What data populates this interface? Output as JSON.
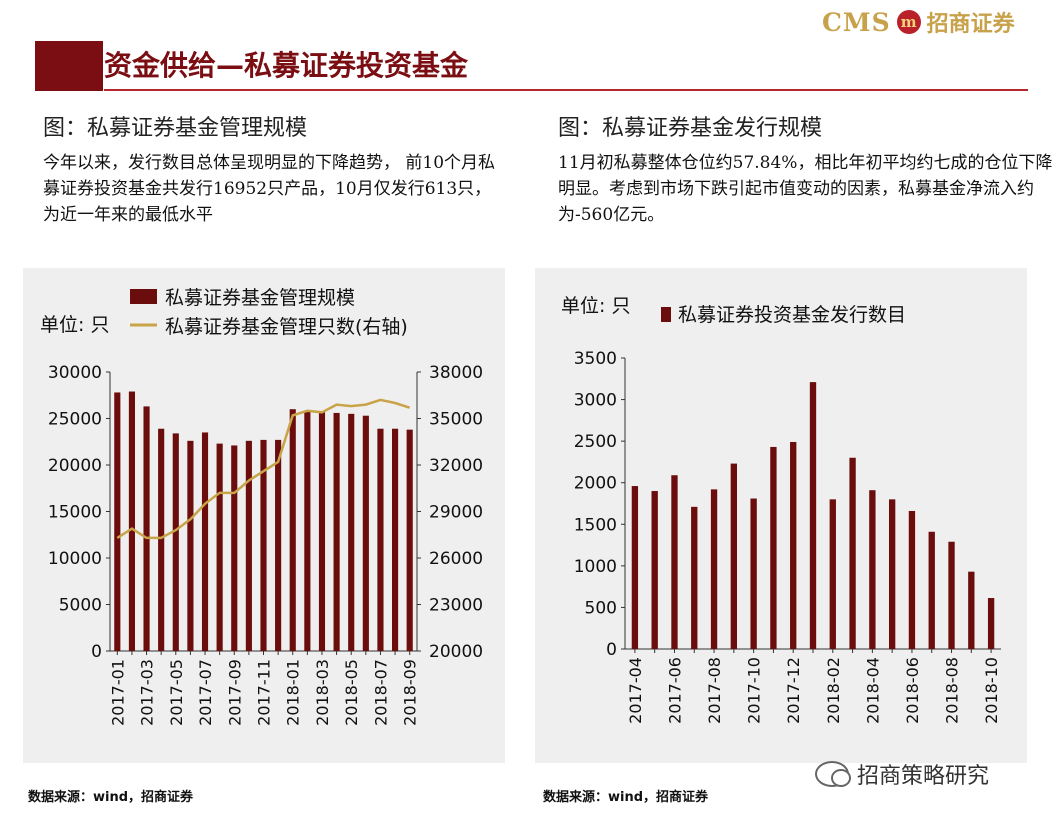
{
  "header": {
    "brand_latin": "CMS",
    "brand_seal": "m",
    "brand_name": "招商证券",
    "page_title": "资金供给—私募证券投资基金"
  },
  "left": {
    "fig_title": "图：私募证券基金管理规模",
    "description": "今年以来，发行数目总体呈现明显的下降趋势， 前10个月私募证券投资基金共发行16952只产品，10月仅发行613只，为近一年来的最低水平",
    "source": "数据来源：wind，招商证券"
  },
  "right": {
    "fig_title": "图：私募证券基金发行规模",
    "description": "11月初私募整体仓位约57.84%，相比年初平均约七成的仓位下降明显。考虑到市场下跌引起市值变动的因素，私募基金净流入约为-560亿元。",
    "source": "数据来源：wind，招商证券"
  },
  "watermark": "招商策略研究",
  "colors": {
    "bar": "#6b0d0d",
    "line": "#c9a347",
    "accent": "#7a0e12"
  },
  "chart_data": [
    {
      "type": "bar",
      "title": "",
      "unit_label": "单位: 只",
      "legend": [
        "私募证券基金管理规模",
        "私募证券基金管理只数(右轴)"
      ],
      "categories": [
        "2017-01",
        "2017-02",
        "2017-03",
        "2017-04",
        "2017-05",
        "2017-06",
        "2017-07",
        "2017-08",
        "2017-09",
        "2017-10",
        "2017-11",
        "2017-12",
        "2018-01",
        "2018-02",
        "2018-03",
        "2018-04",
        "2018-05",
        "2018-06",
        "2018-07",
        "2018-08",
        "2018-09"
      ],
      "tick_labels": [
        "2017-01",
        "2017-03",
        "2017-05",
        "2017-07",
        "2017-09",
        "2017-11",
        "2018-01",
        "2018-03",
        "2018-05",
        "2018-07",
        "2018-09"
      ],
      "series": [
        {
          "name": "私募证券基金管理规模",
          "type": "bar",
          "axis": "left",
          "values": [
            27800,
            27900,
            26300,
            23900,
            23400,
            22600,
            23500,
            22300,
            22100,
            22600,
            22700,
            22700,
            26000,
            25800,
            25800,
            25600,
            25500,
            25300,
            23900,
            23900,
            23800
          ]
        },
        {
          "name": "私募证券基金管理只数(右轴)",
          "type": "line",
          "axis": "right",
          "values": [
            27300,
            27900,
            27300,
            27300,
            27800,
            28500,
            29500,
            30200,
            30200,
            31000,
            31600,
            32200,
            35200,
            35500,
            35400,
            35900,
            35800,
            35900,
            36200,
            36000,
            35700
          ]
        }
      ],
      "ylim": [
        0,
        30000
      ],
      "yticks": [
        0,
        5000,
        10000,
        15000,
        20000,
        25000,
        30000
      ],
      "y2lim": [
        20000,
        38000
      ],
      "y2ticks": [
        20000,
        23000,
        26000,
        29000,
        32000,
        35000,
        38000
      ]
    },
    {
      "type": "bar",
      "title": "",
      "unit_label": "单位:  只",
      "legend": [
        "私募证券投资基金发行数目"
      ],
      "categories": [
        "2017-04",
        "2017-05",
        "2017-06",
        "2017-07",
        "2017-08",
        "2017-09",
        "2017-10",
        "2017-11",
        "2017-12",
        "2018-01",
        "2018-02",
        "2018-03",
        "2018-04",
        "2018-05",
        "2018-06",
        "2018-07",
        "2018-08",
        "2018-09",
        "2018-10"
      ],
      "tick_labels": [
        "2017-04",
        "2017-06",
        "2017-08",
        "2017-10",
        "2017-12",
        "2018-02",
        "2018-04",
        "2018-06",
        "2018-08",
        "2018-10"
      ],
      "series": [
        {
          "name": "私募证券投资基金发行数目",
          "type": "bar",
          "values": [
            1960,
            1900,
            2090,
            1710,
            1920,
            2230,
            1810,
            2430,
            2490,
            3210,
            1800,
            2300,
            1910,
            1800,
            1660,
            1410,
            1290,
            930,
            613
          ]
        }
      ],
      "ylim": [
        0,
        3500
      ],
      "yticks": [
        0,
        500,
        1000,
        1500,
        2000,
        2500,
        3000,
        3500
      ]
    }
  ]
}
